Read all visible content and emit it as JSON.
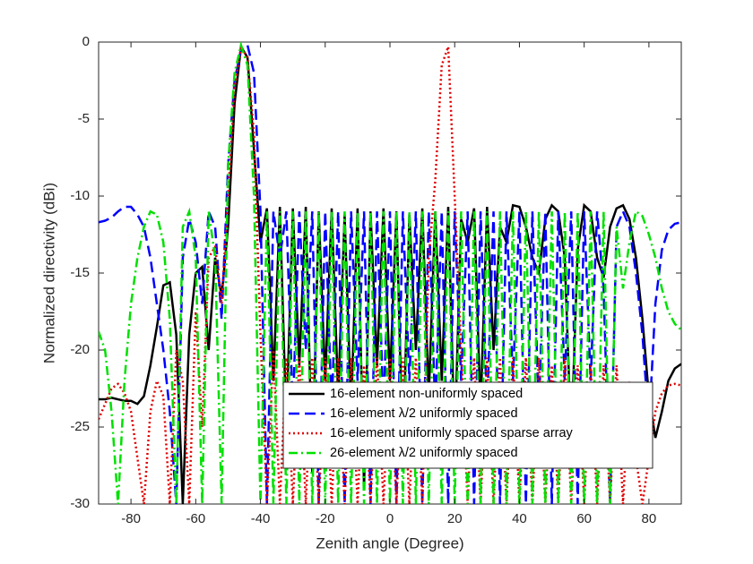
{
  "chart_data": {
    "type": "line",
    "xlabel": "Zenith angle (Degree)",
    "ylabel": "Normalized directivity (dBi)",
    "xlim": [
      -90,
      90
    ],
    "ylim": [
      -30,
      0
    ],
    "xticks": [
      -80,
      -60,
      -40,
      -20,
      0,
      20,
      40,
      60,
      80
    ],
    "yticks": [
      -30,
      -25,
      -20,
      -15,
      -10,
      -5,
      0
    ],
    "legend": "lower right",
    "x": [
      -90,
      -88,
      -86,
      -84,
      -82,
      -80,
      -78,
      -76,
      -74,
      -72,
      -70,
      -68,
      -66,
      -64,
      -62,
      -60,
      -58,
      -56,
      -54,
      -52,
      -50,
      -48,
      -46,
      -44,
      -42,
      -40,
      -38,
      -36,
      -34,
      -32,
      -30,
      -28,
      -26,
      -24,
      -22,
      -20,
      -18,
      -16,
      -14,
      -12,
      -10,
      -8,
      -6,
      -4,
      -2,
      0,
      2,
      4,
      6,
      8,
      10,
      12,
      14,
      16,
      18,
      20,
      22,
      24,
      26,
      28,
      30,
      32,
      34,
      36,
      38,
      40,
      42,
      44,
      46,
      48,
      50,
      52,
      54,
      56,
      58,
      60,
      62,
      64,
      66,
      68,
      70,
      72,
      74,
      76,
      78,
      80,
      82,
      84,
      86,
      88,
      90
    ],
    "series": [
      {
        "name": "16-element non-uniformly spaced",
        "color": "#000000",
        "style": "solid",
        "values": [
          -23.2,
          -23.2,
          -23.1,
          -23.2,
          -23.3,
          -23.3,
          -23.5,
          -23.0,
          -21,
          -18.5,
          -15.8,
          -15.6,
          -19,
          -30,
          -19,
          -15,
          -14.6,
          -20,
          -14,
          -16.5,
          -12,
          -4,
          -0.3,
          -1,
          -7,
          -13,
          -10.8,
          -22,
          -10.7,
          -25,
          -10.8,
          -21,
          -10.7,
          -28,
          -11,
          -22,
          -10.8,
          -23,
          -11.2,
          -24,
          -10.8,
          -29,
          -11,
          -21,
          -10.8,
          -22,
          -11,
          -27,
          -11.2,
          -20,
          -10.8,
          -23,
          -11,
          -22,
          -10.7,
          -26,
          -11.5,
          -13,
          -10.8,
          -24,
          -10.7,
          -20,
          -12,
          -13,
          -10.6,
          -10.7,
          -12,
          -14,
          -15,
          -11.5,
          -10.6,
          -11,
          -14,
          -26,
          -13.5,
          -10.6,
          -11,
          -14,
          -15.3,
          -12,
          -10.8,
          -10.6,
          -11.5,
          -14,
          -18,
          -23,
          -25.7,
          -24,
          -22,
          -21.2,
          -20.9
        ]
      },
      {
        "name": "16-element λ/2 uniformly spaced",
        "color": "#0000ff",
        "style": "dashed",
        "values": [
          -11.7,
          -11.6,
          -11.4,
          -11,
          -10.7,
          -10.7,
          -11.2,
          -12,
          -14,
          -17,
          -20,
          -24,
          -30,
          -14,
          -11.5,
          -13,
          -17,
          -11,
          -12,
          -18,
          -8,
          -2.5,
          -0.5,
          -0.2,
          -2,
          -11,
          -30,
          -11,
          -14,
          -11,
          -24,
          -11,
          -20,
          -11,
          -30,
          -11,
          -24,
          -11,
          -30,
          -11,
          -22,
          -11,
          -30,
          -11,
          -24,
          -11,
          -30,
          -11,
          -22,
          -11,
          -30,
          -11,
          -24,
          -11,
          -30,
          -11,
          -22,
          -11,
          -30,
          -11,
          -24,
          -11,
          -30,
          -11,
          -22,
          -11,
          -30,
          -11,
          -24,
          -11,
          -30,
          -11,
          -22,
          -11,
          -30,
          -11,
          -22,
          -11,
          -16,
          -30,
          -12,
          -11,
          -12,
          -15,
          -19,
          -25,
          -17,
          -13.5,
          -12.2,
          -11.8,
          -11.7
        ]
      },
      {
        "name": "16-element uniformly spaced sparse array",
        "color": "#e00000",
        "style": "dotted",
        "values": [
          -24.5,
          -23.5,
          -22.5,
          -22.2,
          -22.8,
          -24,
          -27,
          -30,
          -24,
          -22,
          -23,
          -30,
          -20,
          -22,
          -30,
          -17.5,
          -25,
          -14,
          -13.3,
          -17,
          -10,
          -3,
          -0.3,
          -1,
          -6,
          -19,
          -30,
          -20,
          -30,
          -20.5,
          -30,
          -20.5,
          -30,
          -20.5,
          -30,
          -20.5,
          -30,
          -20.5,
          -30,
          -20.5,
          -30,
          -21,
          -30,
          -20.5,
          -30,
          -20.5,
          -30,
          -20.5,
          -30,
          -20.5,
          -30,
          -14,
          -9,
          -1.5,
          -0.3,
          -10,
          -20,
          -30,
          -20.5,
          -30,
          -20.5,
          -30,
          -20.5,
          -30,
          -20.5,
          -30,
          -20.5,
          -30,
          -20.5,
          -30,
          -21,
          -30,
          -20.5,
          -30,
          -21,
          -30,
          -21,
          -30,
          -21,
          -30,
          -21,
          -30,
          -22,
          -27,
          -30,
          -27,
          -24,
          -22.8,
          -22.3,
          -22.2,
          -22.3
        ]
      },
      {
        "name": "26-element λ/2 uniformly spaced",
        "color": "#00e000",
        "style": "dashdot",
        "values": [
          -18.8,
          -20,
          -24,
          -30,
          -22,
          -17,
          -14,
          -12,
          -11,
          -11.2,
          -13,
          -18,
          -30,
          -12,
          -11,
          -14,
          -30,
          -11,
          -14,
          -30,
          -8,
          -2,
          -0.2,
          -1.5,
          -10,
          -30,
          -11,
          -30,
          -11,
          -30,
          -11,
          -30,
          -11,
          -30,
          -11,
          -30,
          -11,
          -30,
          -11,
          -30,
          -11,
          -30,
          -11,
          -30,
          -11,
          -30,
          -11,
          -30,
          -11,
          -30,
          -11,
          -30,
          -11,
          -30,
          -11,
          -30,
          -11,
          -30,
          -11,
          -30,
          -11,
          -30,
          -11,
          -30,
          -11,
          -30,
          -11,
          -30,
          -11,
          -30,
          -11,
          -30,
          -11,
          -30,
          -11,
          -30,
          -11,
          -30,
          -11,
          -30,
          -12,
          -16,
          -13,
          -11,
          -11.3,
          -12.5,
          -14,
          -16,
          -17.5,
          -18.3,
          -18.7
        ]
      }
    ]
  }
}
